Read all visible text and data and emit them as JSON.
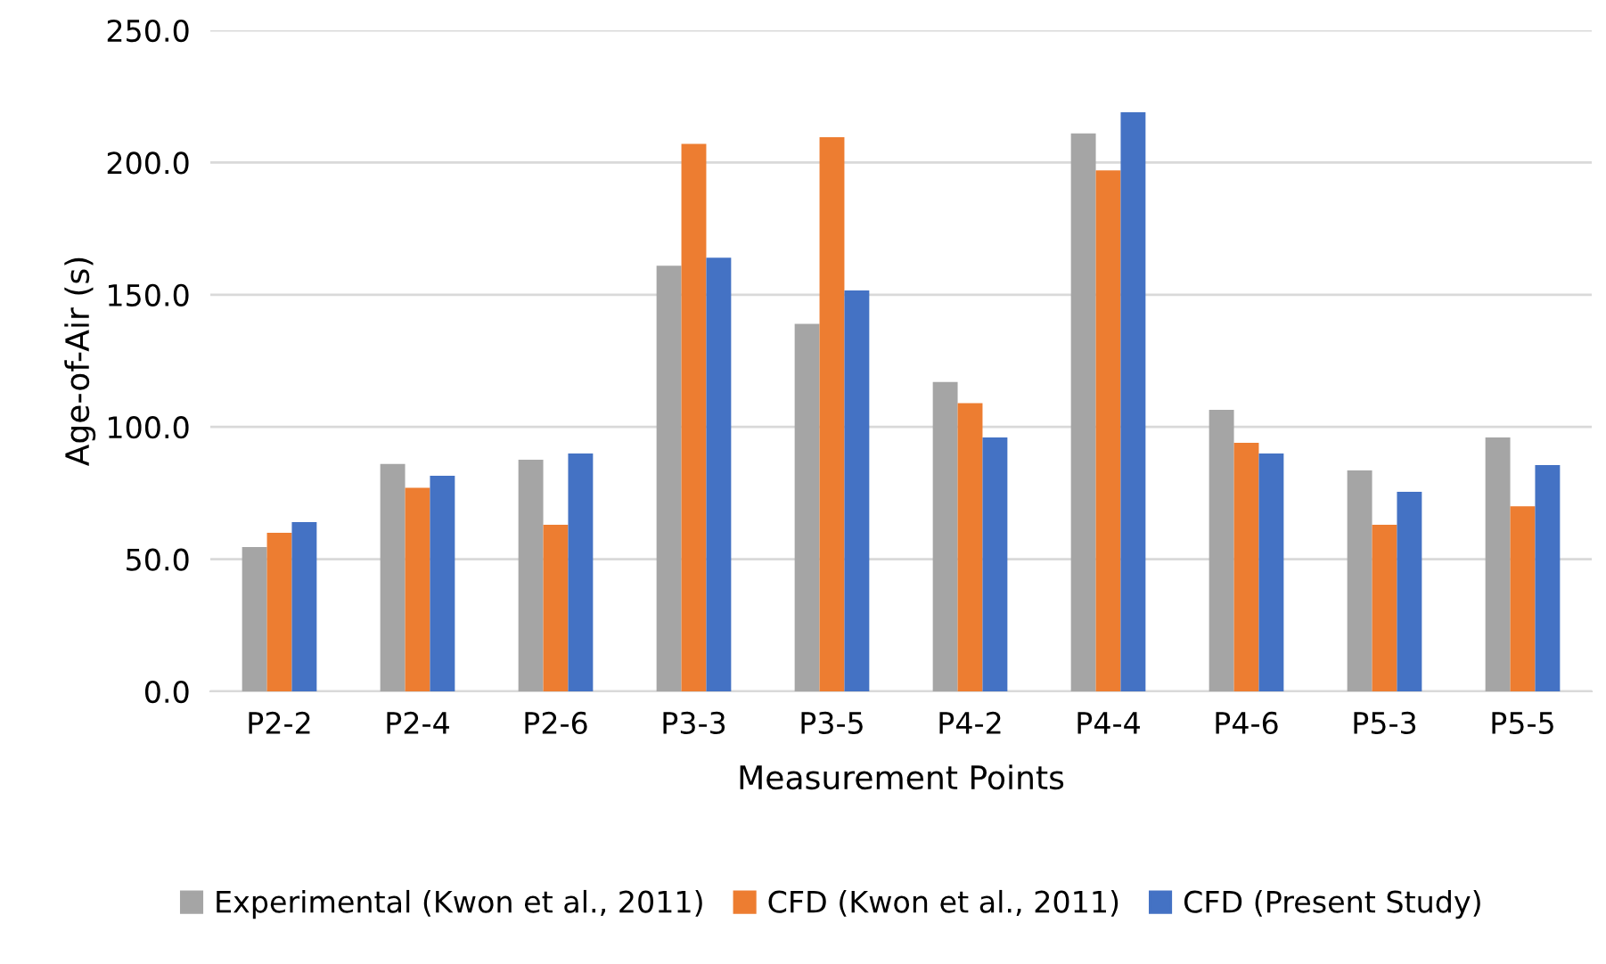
{
  "chart_data": {
    "type": "bar",
    "xlabel": "Measurement Points",
    "ylabel": "Age-of-Air (s)",
    "categories": [
      "P2-2",
      "P2-4",
      "P2-6",
      "P3-3",
      "P3-5",
      "P4-2",
      "P4-4",
      "P4-6",
      "P5-3",
      "P5-5"
    ],
    "series": [
      {
        "name": "Experimental (Kwon et al., 2011)",
        "color": "#a5a5a5",
        "values": [
          54.6,
          86,
          87.6,
          161,
          139,
          117,
          211,
          106.5,
          83.6,
          96
        ]
      },
      {
        "name": "CFD (Kwon et al., 2011)",
        "color": "#ed7d31",
        "values": [
          60,
          77,
          63,
          207,
          209.6,
          109,
          197,
          94,
          63,
          70
        ]
      },
      {
        "name": "CFD (Present Study)",
        "color": "#4472c4",
        "values": [
          64,
          81.5,
          90,
          164,
          151.6,
          96,
          219,
          90,
          75.5,
          85.6
        ]
      }
    ],
    "ylim": [
      0,
      250
    ],
    "yticks": [
      {
        "value": 0,
        "label": "0.0"
      },
      {
        "value": 50,
        "label": "50.0"
      },
      {
        "value": 100,
        "label": "100.0"
      },
      {
        "value": 150,
        "label": "150.0"
      },
      {
        "value": 200,
        "label": "200.0"
      },
      {
        "value": 250,
        "label": "250.0"
      }
    ],
    "grid": "y",
    "legend": "bottom"
  }
}
